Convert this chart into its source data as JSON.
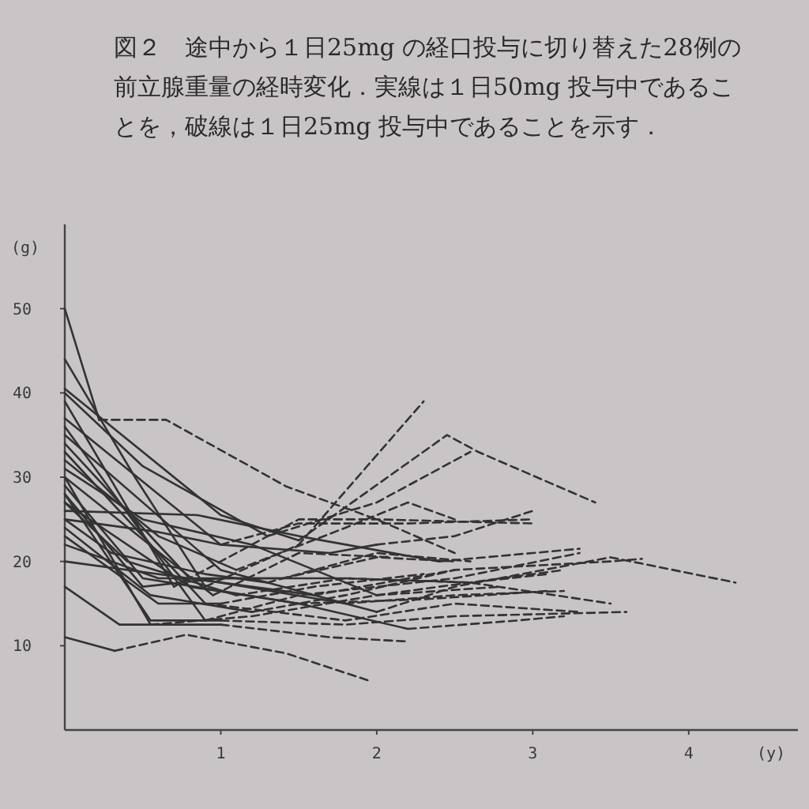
{
  "chart_data": {
    "type": "line",
    "title": "図２　途中から１日25mg の経口投与に切り替えた28例の前立腺重量の経時変化．実線は１日50mg 投与中であることを，破線は１日25mg 投与中であることを示す．",
    "xlabel": "(y)",
    "ylabel": "(g)",
    "xlim": [
      0,
      4.7
    ],
    "ylim": [
      0,
      60
    ],
    "xticks": [
      1,
      2,
      3,
      4
    ],
    "yticks": [
      10,
      20,
      30,
      40,
      50
    ],
    "series": [
      {
        "color": "#333333",
        "line_style": "solid",
        "x": [
          0,
          0.22
        ],
        "values": [
          50,
          36.8
        ]
      },
      {
        "color": "#333333",
        "line_style": "dashed",
        "x": [
          0.22,
          0.65,
          1.42,
          2.0,
          2.5
        ],
        "values": [
          36.8,
          36.8,
          28.9,
          25,
          21
        ]
      },
      {
        "color": "#333333",
        "line_style": "solid",
        "x": [
          0,
          0.45,
          0.9
        ],
        "values": [
          44,
          30,
          17
        ]
      },
      {
        "color": "#333333",
        "line_style": "dashed",
        "x": [
          0.9,
          1.5,
          2.3
        ],
        "values": [
          17,
          22,
          39
        ]
      },
      {
        "color": "#333333",
        "line_style": "solid",
        "x": [
          0,
          1.0,
          1.5
        ],
        "values": [
          40.5,
          25.5,
          22.5
        ]
      },
      {
        "color": "#333333",
        "line_style": "dashed",
        "x": [
          1.5,
          2.45,
          2.65,
          3.4
        ],
        "values": [
          22.5,
          35,
          33,
          27
        ]
      },
      {
        "color": "#333333",
        "line_style": "solid",
        "x": [
          0,
          0.5,
          1.3
        ],
        "values": [
          40,
          31.3,
          23
        ]
      },
      {
        "color": "#333333",
        "line_style": "dashed",
        "x": [
          1.3,
          2.0,
          2.6
        ],
        "values": [
          23,
          27,
          33
        ]
      },
      {
        "color": "#333333",
        "line_style": "solid",
        "x": [
          0,
          0.7
        ],
        "values": [
          39,
          17
        ]
      },
      {
        "color": "#333333",
        "line_style": "dashed",
        "x": [
          0.7,
          1.5,
          2.0,
          3.0
        ],
        "values": [
          17,
          25,
          25,
          24.5
        ]
      },
      {
        "color": "#333333",
        "line_style": "solid",
        "x": [
          0,
          0.6,
          1.0,
          1.7,
          2.0
        ],
        "values": [
          37,
          28,
          22,
          21,
          22
        ]
      },
      {
        "color": "#333333",
        "line_style": "dashed",
        "x": [
          2.0,
          2.5,
          3.0
        ],
        "values": [
          22,
          23,
          26
        ]
      },
      {
        "color": "#333333",
        "line_style": "solid",
        "x": [
          0,
          0.9
        ],
        "values": [
          36,
          13
        ]
      },
      {
        "color": "#333333",
        "line_style": "dashed",
        "x": [
          0.9,
          1.5,
          2.5,
          3.3
        ],
        "values": [
          13,
          16,
          18,
          21
        ]
      },
      {
        "color": "#333333",
        "line_style": "solid",
        "x": [
          0,
          1.0,
          2.0
        ],
        "values": [
          35,
          19,
          14
        ]
      },
      {
        "color": "#333333",
        "line_style": "dashed",
        "x": [
          2.0,
          2.5,
          3.5,
          4.3
        ],
        "values": [
          14,
          17,
          20.5,
          17.5
        ]
      },
      {
        "color": "#333333",
        "line_style": "solid",
        "x": [
          0,
          0.8,
          1.6
        ],
        "values": [
          34,
          18,
          16
        ]
      },
      {
        "color": "#333333",
        "line_style": "dashed",
        "x": [
          1.6,
          2.5,
          3.5,
          3.7
        ],
        "values": [
          16,
          19,
          20,
          20.3
        ]
      },
      {
        "color": "#333333",
        "line_style": "solid",
        "x": [
          0,
          0.9
        ],
        "values": [
          33,
          15
        ]
      },
      {
        "color": "#333333",
        "line_style": "dashed",
        "x": [
          0.9,
          1.8,
          2.5,
          3.3
        ],
        "values": [
          15,
          13,
          15,
          14
        ]
      },
      {
        "color": "#333333",
        "line_style": "solid",
        "x": [
          0,
          0.5,
          1.2,
          2.0
        ],
        "values": [
          31,
          25,
          22,
          16
        ]
      },
      {
        "color": "#333333",
        "line_style": "dashed",
        "x": [
          2.0,
          2.8,
          3.2
        ],
        "values": [
          16,
          18,
          19
        ]
      },
      {
        "color": "#333333",
        "line_style": "solid",
        "x": [
          0,
          0.55
        ],
        "values": [
          30,
          12.5
        ]
      },
      {
        "color": "#333333",
        "line_style": "dashed",
        "x": [
          0.55,
          1.2,
          2.0,
          2.8
        ],
        "values": [
          12.5,
          13.5,
          16,
          17
        ]
      },
      {
        "color": "#333333",
        "line_style": "solid",
        "x": [
          0,
          0.95
        ],
        "values": [
          30,
          16
        ]
      },
      {
        "color": "#333333",
        "line_style": "dashed",
        "x": [
          0.95,
          1.5,
          2.1
        ],
        "values": [
          16,
          21,
          20.5
        ]
      },
      {
        "color": "#333333",
        "line_style": "solid",
        "x": [
          0,
          0.5,
          1.5
        ],
        "values": [
          29,
          18,
          15
        ]
      },
      {
        "color": "#333333",
        "line_style": "dashed",
        "x": [
          1.5,
          2.3,
          3.1
        ],
        "values": [
          15,
          15.5,
          16.5
        ]
      },
      {
        "color": "#333333",
        "line_style": "solid",
        "x": [
          0,
          0.5,
          1.0,
          1.8
        ],
        "values": [
          28,
          17,
          18,
          18
        ]
      },
      {
        "color": "#333333",
        "line_style": "dashed",
        "x": [
          1.8,
          2.6,
          3.5
        ],
        "values": [
          18,
          17.5,
          15
        ]
      },
      {
        "color": "#333333",
        "line_style": "solid",
        "x": [
          0,
          0.55,
          1.0
        ],
        "values": [
          28,
          13,
          13
        ]
      },
      {
        "color": "#333333",
        "line_style": "dashed",
        "x": [
          1.0,
          1.8,
          2.5,
          3.6
        ],
        "values": [
          13,
          12.5,
          13.5,
          14
        ]
      },
      {
        "color": "#333333",
        "line_style": "solid",
        "x": [
          0,
          0.4,
          1.1
        ],
        "values": [
          27,
          20,
          16
        ]
      },
      {
        "color": "#333333",
        "line_style": "dashed",
        "x": [
          1.1,
          1.8,
          2.6,
          3.1
        ],
        "values": [
          16,
          18,
          17.5,
          18.5
        ]
      },
      {
        "color": "#333333",
        "line_style": "solid",
        "x": [
          0,
          0.8,
          1.5,
          2.2
        ],
        "values": [
          27,
          17,
          15,
          12
        ]
      },
      {
        "color": "#333333",
        "line_style": "dashed",
        "x": [
          2.2,
          2.9,
          3.2
        ],
        "values": [
          12,
          13,
          13.5
        ]
      },
      {
        "color": "#333333",
        "line_style": "solid",
        "x": [
          0,
          0.85,
          1.5,
          2.4
        ],
        "values": [
          26,
          25.5,
          23,
          20
        ]
      },
      {
        "color": "#333333",
        "line_style": "dashed",
        "x": [
          2.4,
          3.0,
          3.3
        ],
        "values": [
          20,
          21,
          21.5
        ]
      },
      {
        "color": "#333333",
        "line_style": "solid",
        "x": [
          0,
          0.3,
          0.9,
          1.3
        ],
        "values": [
          25,
          21,
          18.5,
          17.5
        ]
      },
      {
        "color": "#333333",
        "line_style": "dashed",
        "x": [
          1.3,
          2.0,
          2.6
        ],
        "values": [
          17.5,
          21,
          20
        ]
      },
      {
        "color": "#333333",
        "line_style": "solid",
        "x": [
          0,
          0.6,
          1.0
        ],
        "values": [
          25,
          23.5,
          22
        ]
      },
      {
        "color": "#333333",
        "line_style": "dashed",
        "x": [
          1.0,
          1.5,
          2.2,
          3.0
        ],
        "values": [
          22,
          24.5,
          24.5,
          25
        ]
      },
      {
        "color": "#333333",
        "line_style": "solid",
        "x": [
          0,
          0.55,
          1.2
        ],
        "values": [
          24,
          16,
          14
        ]
      },
      {
        "color": "#333333",
        "line_style": "dashed",
        "x": [
          1.2,
          1.8,
          2.5
        ],
        "values": [
          14,
          16,
          19
        ]
      },
      {
        "color": "#333333",
        "line_style": "solid",
        "x": [
          0,
          0.6,
          1.0
        ],
        "values": [
          23,
          15,
          15
        ]
      },
      {
        "color": "#333333",
        "line_style": "dashed",
        "x": [
          1.0,
          1.6,
          2.3
        ],
        "values": [
          15,
          17,
          18.5
        ]
      },
      {
        "color": "#333333",
        "line_style": "solid",
        "x": [
          0,
          0.6,
          1.4
        ],
        "values": [
          22,
          18,
          18
        ]
      },
      {
        "color": "#333333",
        "line_style": "dashed",
        "x": [
          1.4,
          2.0,
          2.5
        ],
        "values": [
          18,
          20.5,
          20
        ]
      },
      {
        "color": "#333333",
        "line_style": "solid",
        "x": [
          0,
          1.0,
          1.8
        ],
        "values": [
          20,
          17.5,
          15
        ]
      },
      {
        "color": "#333333",
        "line_style": "dashed",
        "x": [
          1.8,
          2.5,
          3.2
        ],
        "values": [
          15,
          16,
          16.5
        ]
      },
      {
        "color": "#333333",
        "line_style": "solid",
        "x": [
          0,
          0.35,
          1.0
        ],
        "values": [
          17,
          12.5,
          12.5
        ]
      },
      {
        "color": "#333333",
        "line_style": "dashed",
        "x": [
          1.0,
          1.7,
          2.2
        ],
        "values": [
          12.5,
          11,
          10.5
        ]
      },
      {
        "color": "#333333",
        "line_style": "solid",
        "x": [
          0,
          0.32
        ],
        "values": [
          11,
          9.4
        ]
      },
      {
        "color": "#333333",
        "line_style": "dashed",
        "x": [
          0.32,
          0.78,
          1.42,
          1.96
        ],
        "values": [
          9.4,
          11.3,
          9.1,
          5.8
        ]
      },
      {
        "color": "#333333",
        "line_style": "solid",
        "x": [
          0,
          0.6,
          1.1
        ],
        "values": [
          32,
          23,
          19
        ]
      },
      {
        "color": "#333333",
        "line_style": "dashed",
        "x": [
          1.1,
          1.8,
          2.2,
          2.5
        ],
        "values": [
          19,
          24,
          27,
          25
        ]
      }
    ]
  }
}
